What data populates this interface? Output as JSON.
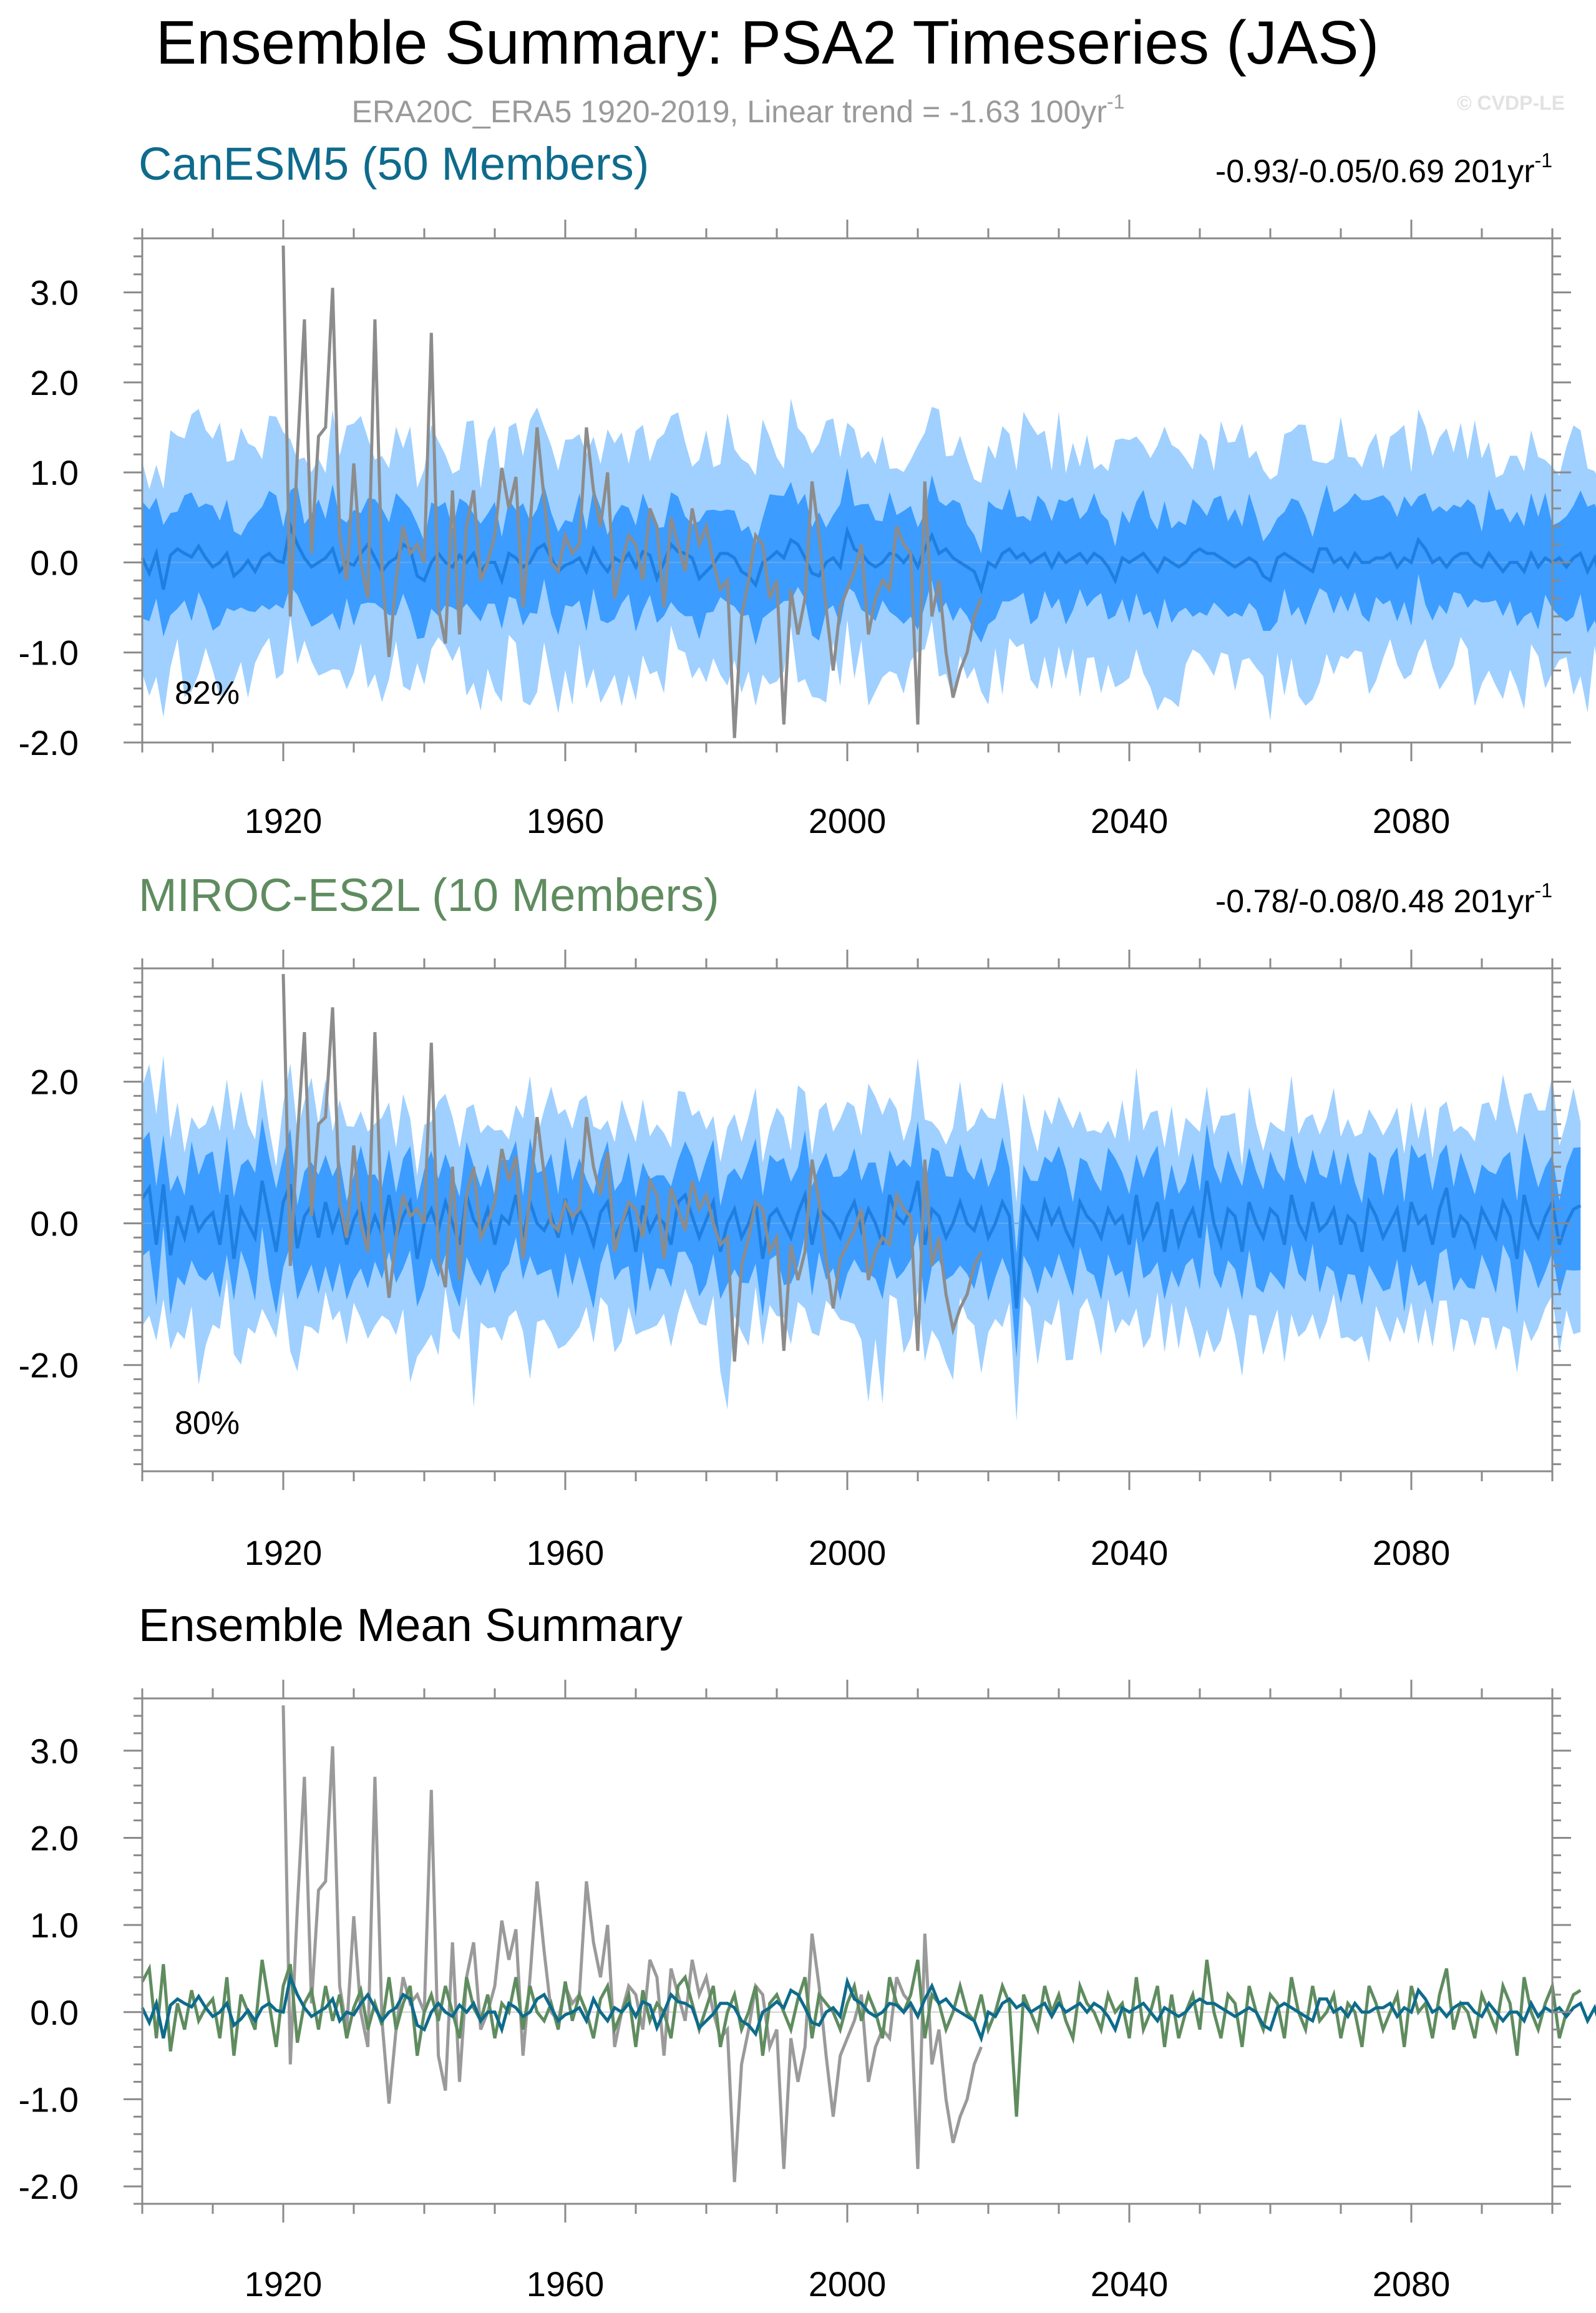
{
  "page": {
    "title": "Ensemble Summary: PSA2 Timeseries (JAS)",
    "subtitle": "ERA20C_ERA5 1920-2019, Linear trend = -1.63 100yr",
    "subtitle_sup": "-1",
    "watermark": "© CVDP-LE"
  },
  "colors": {
    "band_outer": "#9fd0ff",
    "band_inner": "#3c9cff",
    "model_mean": "#1f7fe0",
    "obs": "#8c8c8c",
    "canesm5": "#0e6b8c",
    "miroc": "#5f8c5f",
    "frame": "#8a8a8a"
  },
  "chart_data": [
    {
      "type": "area",
      "title": "CanESM5 (50 Members)",
      "title_color": "#0e6b8c",
      "trend_text": "-0.93/-0.05/0.69 201yr",
      "trend_sup": "-1",
      "percent_label": "82%",
      "xlim": [
        1900,
        2100
      ],
      "ylim": [
        -2.0,
        3.6
      ],
      "yticks": [
        -2.0,
        -1.0,
        0.0,
        1.0,
        2.0,
        3.0
      ],
      "ytick_labels": [
        "-2.0",
        "-1.0",
        "0.0",
        "1.0",
        "2.0",
        "3.0"
      ],
      "xticks": [
        1920,
        1960,
        2000,
        2040,
        2080
      ],
      "xtick_labels": [
        "1920",
        "1960",
        "2000",
        "2040",
        "2080"
      ],
      "bands": {
        "outer_halfwidth_approx": 1.25,
        "inner_halfwidth_approx": 0.55
      },
      "series": [
        {
          "kind": "ensemble_mean",
          "x_start": 1900,
          "step": 1,
          "values": [
            0.05,
            -0.12,
            0.1,
            -0.3,
            0.08,
            0.15,
            0.1,
            0.06,
            0.18,
            0.05,
            -0.05,
            0.0,
            0.1,
            -0.15,
            -0.08,
            0.02,
            -0.1,
            0.05,
            0.1,
            0.02,
            0.0,
            0.4,
            0.2,
            0.05,
            -0.05,
            0.0,
            0.05,
            0.15,
            -0.1,
            0.0,
            -0.03,
            0.1,
            0.2,
            0.05,
            -0.1,
            0.0,
            0.05,
            0.2,
            0.15,
            -0.15,
            -0.2,
            0.0,
            0.1,
            0.0,
            -0.05,
            0.08,
            0.0,
            0.1,
            -0.1,
            0.0,
            0.0,
            -0.2,
            0.1,
            0.05,
            -0.05,
            0.0,
            0.15,
            0.2,
            0.05,
            -0.1,
            -0.03,
            0.0,
            0.05,
            -0.1,
            0.15,
            0.0,
            -0.1,
            0.05,
            0.0,
            0.1,
            -0.05,
            0.12,
            0.08,
            -0.18,
            0.0,
            0.2,
            0.12,
            0.1,
            0.05,
            -0.18,
            -0.1,
            -0.02,
            0.1,
            0.1,
            0.05,
            -0.1,
            -0.15,
            -0.25,
            0.0,
            0.05,
            0.12,
            0.05,
            0.25,
            0.2,
            0.05,
            -0.12,
            -0.15,
            0.0,
            0.05,
            -0.05,
            0.35,
            0.15,
            0.1,
            0.0,
            -0.05,
            0.0,
            0.1,
            0.08,
            0.0,
            0.1,
            -0.05,
            0.15,
            0.3,
            0.1,
            0.15,
            0.05,
            0.0,
            -0.05,
            -0.1,
            -0.3,
            0.0,
            -0.05,
            0.1,
            0.15,
            0.05,
            0.1,
            0.0,
            0.05,
            0.1,
            -0.05,
            0.1,
            0.0,
            0.05,
            0.1,
            0.0,
            0.1,
            0.05,
            -0.05,
            -0.2,
            0.05,
            0.0,
            0.05,
            0.1,
            0.0,
            -0.1,
            0.05,
            0.0,
            -0.05,
            0.0,
            0.1,
            0.15,
            0.1,
            0.1,
            0.05,
            0.0,
            -0.05,
            0.0,
            0.05,
            0.0,
            -0.15,
            -0.2,
            0.05,
            0.1,
            0.05,
            0.0,
            -0.05,
            -0.1,
            0.15,
            0.15,
            0.0,
            0.05,
            -0.05,
            0.1,
            0.0,
            0.0,
            0.05,
            0.05,
            0.1,
            -0.05,
            0.05,
            0.0,
            0.25,
            0.15,
            0.0,
            0.05,
            -0.05,
            0.05,
            0.1,
            0.1,
            0.0,
            -0.05,
            0.1,
            0.0,
            -0.1,
            0.0,
            0.0,
            -0.1,
            0.1,
            -0.05,
            0.05,
            0.0,
            0.05,
            -0.05,
            0.05,
            0.1,
            -0.1,
            0.05,
            -0.2
          ]
        },
        {
          "kind": "obs",
          "x_start": 1920,
          "step": 1,
          "values": [
            3.52,
            -0.6,
            1.2,
            2.7,
            0.1,
            1.4,
            1.5,
            3.05,
            0.3,
            -0.2,
            1.1,
            0.0,
            -0.4,
            2.7,
            -0.1,
            -1.05,
            -0.2,
            0.4,
            0.1,
            0.2,
            0.0,
            2.55,
            -0.5,
            -0.9,
            0.8,
            -0.8,
            0.4,
            0.8,
            -0.2,
            0.0,
            0.3,
            1.05,
            0.6,
            0.95,
            -0.5,
            0.4,
            1.5,
            0.7,
            0.0,
            -0.1,
            0.3,
            0.1,
            0.2,
            1.5,
            0.8,
            0.4,
            1.0,
            -0.4,
            0.0,
            0.3,
            0.2,
            -0.2,
            0.6,
            0.4,
            -0.5,
            0.5,
            0.2,
            -0.1,
            0.6,
            0.2,
            0.4,
            0.0,
            -0.3,
            -0.2,
            -1.95,
            -0.6,
            -0.2,
            0.3,
            0.2,
            -0.4,
            -0.2,
            -1.8,
            -0.3,
            -0.8,
            -0.4,
            0.9,
            0.3,
            -0.5,
            -1.2,
            -0.5,
            -0.3,
            -0.1,
            0.2,
            -0.8,
            -0.4,
            -0.2,
            -0.3,
            0.4,
            0.2,
            0.1,
            -1.8,
            0.9,
            -0.6,
            -0.2,
            -1.0,
            -1.5,
            -1.2,
            -1.0,
            -0.6,
            -0.4
          ]
        }
      ]
    },
    {
      "type": "area",
      "title": "MIROC-ES2L (10 Members)",
      "title_color": "#5f8c5f",
      "trend_text": "-0.78/-0.08/0.48 201yr",
      "trend_sup": "-1",
      "percent_label": "80%",
      "xlim": [
        1900,
        2100
      ],
      "ylim": [
        -3.5,
        3.6
      ],
      "yticks": [
        -2.0,
        0.0,
        2.0
      ],
      "ytick_labels": [
        "-2.0",
        "0.0",
        "2.0"
      ],
      "xticks": [
        1920,
        1960,
        2000,
        2040,
        2080
      ],
      "xtick_labels": [
        "1920",
        "1960",
        "2000",
        "2040",
        "2080"
      ],
      "bands": {
        "outer_halfwidth_approx": 1.5,
        "inner_halfwidth_approx": 0.75
      },
      "series": [
        {
          "kind": "ensemble_mean",
          "x_start": 1900,
          "step": 1,
          "values": [
            0.35,
            0.5,
            -0.3,
            0.55,
            -0.45,
            0.1,
            -0.2,
            0.25,
            -0.1,
            0.05,
            0.15,
            -0.3,
            0.4,
            -0.5,
            0.2,
            0.0,
            -0.2,
            0.6,
            0.1,
            -0.4,
            0.3,
            0.55,
            -0.35,
            0.1,
            0.25,
            -0.2,
            0.3,
            -0.1,
            0.2,
            -0.3,
            0.05,
            0.25,
            -0.2,
            0.1,
            -0.15,
            0.4,
            -0.2,
            0.1,
            0.3,
            -0.5,
            0.0,
            0.2,
            -0.1,
            0.3,
            0.0,
            -0.3,
            0.4,
            0.05,
            -0.1,
            0.2,
            -0.3,
            0.1,
            0.0,
            0.4,
            -0.2,
            0.3,
            0.0,
            -0.1,
            0.1,
            -0.2,
            0.35,
            -0.1,
            0.2,
            0.0,
            -0.3,
            0.15,
            0.3,
            -0.2,
            0.0,
            0.2,
            -0.4,
            0.25,
            -0.1,
            0.1,
            0.0,
            -0.3,
            0.3,
            0.4,
            0.1,
            -0.2,
            0.05,
            0.3,
            -0.4,
            0.0,
            0.2,
            -0.2,
            0.0,
            0.3,
            -0.5,
            0.1,
            0.2,
            0.0,
            -0.2,
            0.15,
            0.4,
            -0.3,
            0.2,
            0.1,
            0.0,
            -0.2,
            0.1,
            0.3,
            -0.1,
            0.2,
            0.0,
            -0.3,
            0.4,
            0.1,
            0.0,
            0.2,
            0.6,
            -0.3,
            0.2,
            0.1,
            -0.2,
            0.0,
            0.3,
            0.0,
            -0.1,
            0.2,
            -0.2,
            0.0,
            0.3,
            0.1,
            -1.2,
            0.2,
            0.0,
            -0.2,
            0.3,
            0.0,
            0.2,
            -0.1,
            -0.3,
            0.3,
            0.1,
            0.0,
            -0.2,
            0.2,
            0.0,
            0.1,
            -0.3,
            0.4,
            -0.2,
            0.0,
            0.3,
            -0.4,
            0.2,
            -0.3,
            0.0,
            0.2,
            -0.2,
            0.6,
            0.0,
            -0.3,
            0.2,
            0.1,
            -0.4,
            0.3,
            0.0,
            -0.2,
            0.2,
            0.1,
            -0.3,
            0.4,
            0.0,
            -0.2,
            0.3,
            -0.1,
            0.0,
            0.2,
            -0.3,
            0.1,
            0.0,
            -0.4,
            0.3,
            0.1,
            -0.2,
            0.0,
            0.2,
            -0.4,
            0.3,
            0.0,
            0.1,
            -0.3,
            0.2,
            0.5,
            -0.2,
            0.1,
            0.0,
            -0.3,
            0.2,
            0.0,
            -0.2,
            0.3,
            0.1,
            -0.5,
            0.4,
            0.0,
            -0.2,
            0.1,
            0.3,
            -0.3,
            0.0,
            0.2,
            0.25
          ]
        },
        {
          "kind": "obs",
          "x_start": 1920,
          "step": 1,
          "values": [
            3.52,
            -0.6,
            1.2,
            2.7,
            0.1,
            1.4,
            1.5,
            3.05,
            0.3,
            -0.2,
            1.1,
            0.0,
            -0.4,
            2.7,
            -0.1,
            -1.05,
            -0.2,
            0.4,
            0.1,
            0.2,
            0.0,
            2.55,
            -0.5,
            -0.9,
            0.8,
            -0.8,
            0.4,
            0.8,
            -0.2,
            0.0,
            0.3,
            1.05,
            0.6,
            0.95,
            -0.5,
            0.4,
            1.5,
            0.7,
            0.0,
            -0.1,
            0.3,
            0.1,
            0.2,
            1.5,
            0.8,
            0.4,
            1.0,
            -0.4,
            0.0,
            0.3,
            0.2,
            -0.2,
            0.6,
            0.4,
            -0.5,
            0.5,
            0.2,
            -0.1,
            0.6,
            0.2,
            0.4,
            0.0,
            -0.3,
            -0.2,
            -1.95,
            -0.6,
            -0.2,
            0.3,
            0.2,
            -0.4,
            -0.2,
            -1.8,
            -0.3,
            -0.8,
            -0.4,
            0.9,
            0.3,
            -0.5,
            -1.2,
            -0.5,
            -0.3,
            -0.1,
            0.2,
            -0.8,
            -0.4,
            -0.2,
            -0.3,
            0.4,
            0.2,
            0.1,
            -1.8,
            0.9,
            -0.6,
            -0.2,
            -1.0,
            -1.5,
            -1.2,
            -1.0,
            -0.6,
            -0.4
          ]
        }
      ]
    },
    {
      "type": "line",
      "title": "Ensemble Mean Summary",
      "title_color": "#000000",
      "xlim": [
        1900,
        2100
      ],
      "ylim": [
        -2.2,
        3.6
      ],
      "yticks": [
        -2.0,
        -1.0,
        0.0,
        1.0,
        2.0,
        3.0
      ],
      "ytick_labels": [
        "-2.0",
        "-1.0",
        "0.0",
        "1.0",
        "2.0",
        "3.0"
      ],
      "xticks": [
        1920,
        1960,
        2000,
        2040,
        2080
      ],
      "xtick_labels": [
        "1920",
        "1960",
        "2000",
        "2040",
        "2080"
      ],
      "series": [
        {
          "kind": "obs",
          "ref": "obs"
        },
        {
          "kind": "canesm5",
          "ref": "canesm5_mean"
        },
        {
          "kind": "miroc",
          "ref": "miroc_mean"
        }
      ]
    }
  ]
}
